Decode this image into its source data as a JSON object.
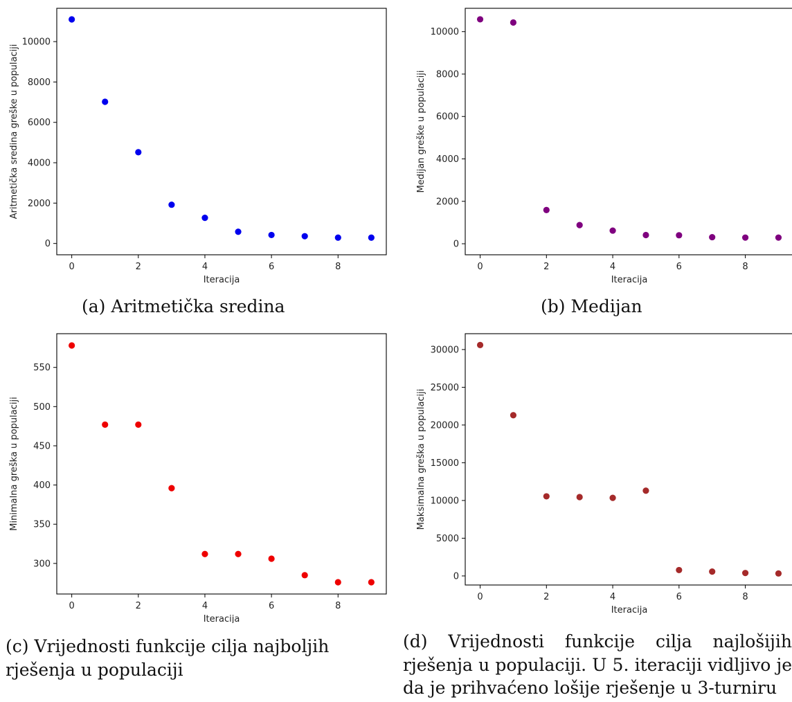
{
  "chart_data": [
    {
      "type": "scatter",
      "xlabel": "Iteracija",
      "ylabel": "Aritmetička sredina greške u populaciji",
      "caption": "(a) Aritmetička sredina",
      "color": "#0000ee",
      "x": [
        0,
        1,
        2,
        3,
        4,
        5,
        6,
        7,
        8,
        9
      ],
      "y": [
        11100,
        7020,
        4520,
        1920,
        1270,
        580,
        420,
        360,
        290,
        290
      ],
      "xlim": [
        -0.45,
        9.45
      ],
      "ylim": [
        -560,
        11650
      ],
      "xticks": [
        "0",
        "2",
        "4",
        "6",
        "8"
      ],
      "yticks": [
        "0",
        "2000",
        "4000",
        "6000",
        "8000",
        "10000"
      ]
    },
    {
      "type": "scatter",
      "xlabel": "Iteracija",
      "ylabel": "Medijan greške u populaciji",
      "caption": "(b) Medijan",
      "color": "#7f007f",
      "x": [
        0,
        1,
        2,
        3,
        4,
        5,
        6,
        7,
        8,
        9
      ],
      "y": [
        10580,
        10430,
        1590,
        880,
        620,
        410,
        400,
        310,
        290,
        290
      ],
      "xlim": [
        -0.45,
        9.45
      ],
      "ylim": [
        -520,
        11100
      ],
      "xticks": [
        "0",
        "2",
        "4",
        "6",
        "8"
      ],
      "yticks": [
        "0",
        "2000",
        "4000",
        "6000",
        "8000",
        "10000"
      ]
    },
    {
      "type": "scatter",
      "xlabel": "Iteracija",
      "ylabel": "Minimalna greška u populaciji",
      "caption": "(c) Vrijednosti funkcije cilja najboljih rješenja u populaciji",
      "color": "#ee0000",
      "x": [
        0,
        1,
        2,
        3,
        4,
        5,
        6,
        7,
        8,
        9
      ],
      "y": [
        578,
        477,
        477,
        396,
        312,
        312,
        306,
        285,
        276,
        276
      ],
      "xlim": [
        -0.45,
        9.45
      ],
      "ylim": [
        261,
        593
      ],
      "xticks": [
        "0",
        "2",
        "4",
        "6",
        "8"
      ],
      "yticks": [
        "300",
        "350",
        "400",
        "450",
        "500",
        "550"
      ]
    },
    {
      "type": "scatter",
      "xlabel": "Iteracija",
      "ylabel": "Maksimalna greška u populaciji",
      "caption": "(d) Vrijednosti funkcije cilja najlošijih rješenja u populaciji. U 5. iteraciji vidljivo je da je prihvaćeno lošije rješenje u 3-turniru",
      "color": "#a52a2a",
      "x": [
        0,
        1,
        2,
        3,
        4,
        5,
        6,
        7,
        8,
        9
      ],
      "y": [
        30600,
        21300,
        10550,
        10450,
        10350,
        11300,
        780,
        580,
        390,
        330
      ],
      "xlim": [
        -0.45,
        9.45
      ],
      "ylim": [
        -1200,
        32100
      ],
      "xticks": [
        "0",
        "2",
        "4",
        "6",
        "8"
      ],
      "yticks": [
        "0",
        "5000",
        "10000",
        "15000",
        "20000",
        "25000",
        "30000"
      ]
    }
  ]
}
